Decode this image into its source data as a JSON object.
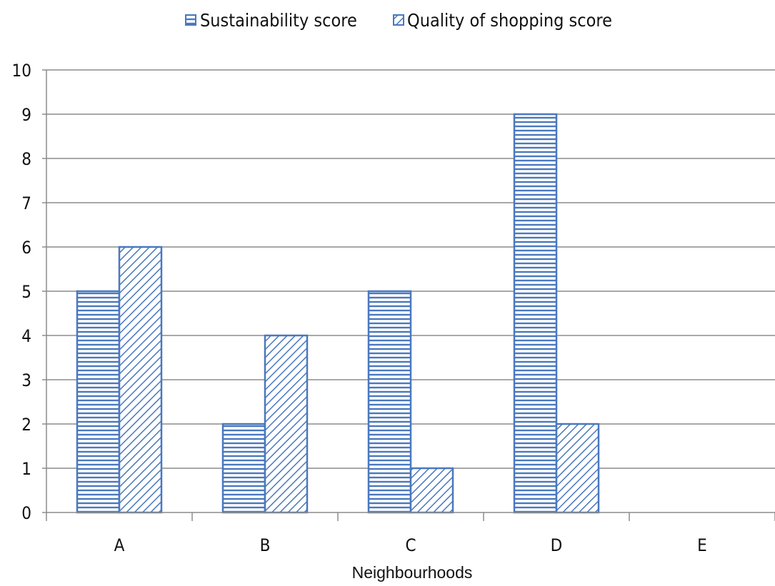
{
  "chart_data": {
    "type": "bar",
    "categories": [
      "A",
      "B",
      "C",
      "D",
      "E"
    ],
    "series": [
      {
        "name": "Sustainability score",
        "values": [
          5,
          2,
          5,
          9,
          0
        ],
        "pattern": "horizontal-stripes"
      },
      {
        "name": "Quality of shopping score",
        "values": [
          6,
          4,
          1,
          2,
          0
        ],
        "pattern": "diagonal-stripes"
      }
    ],
    "title": "",
    "xlabel": "Neighbourhoods",
    "ylabel": "",
    "ylim": [
      0,
      10
    ],
    "yticks": [
      0,
      1,
      2,
      3,
      4,
      5,
      6,
      7,
      8,
      9,
      10
    ],
    "grid": true,
    "legend_position": "top-center",
    "colors": {
      "bar_stroke": "#4a78be",
      "bar_fill": "#ffffff",
      "grid": "#8c8c8c",
      "axis": "#8c8c8c"
    }
  }
}
